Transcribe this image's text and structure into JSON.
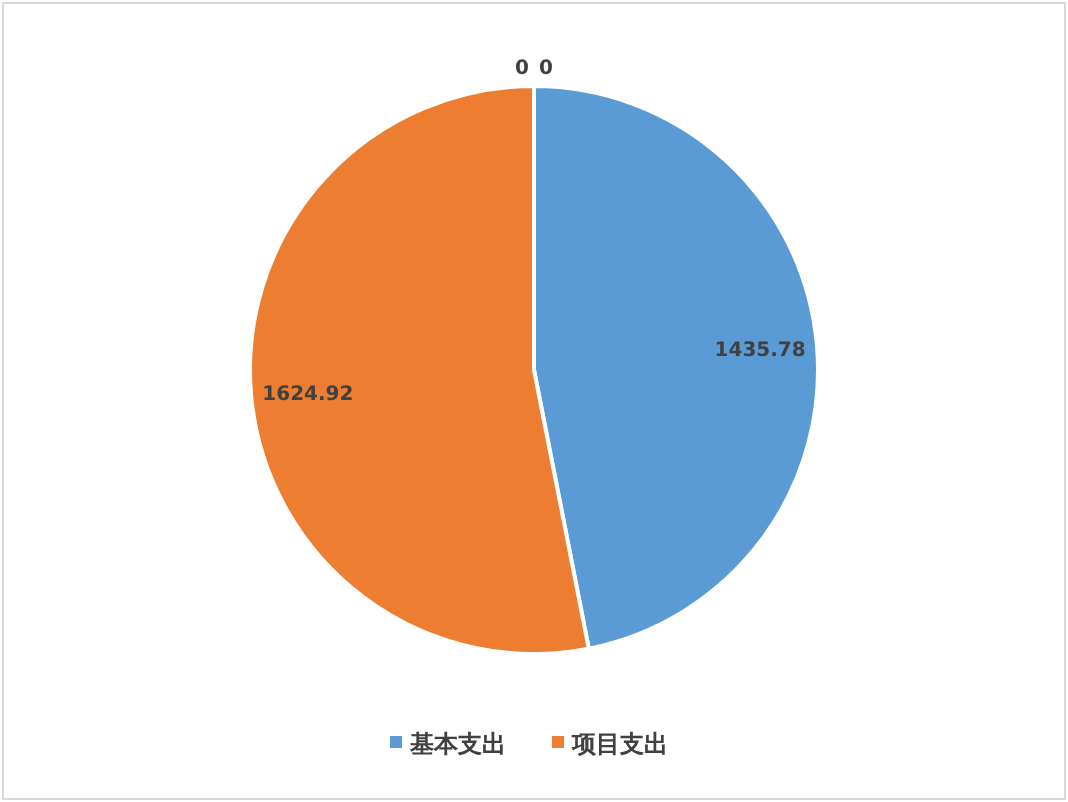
{
  "chart_data": {
    "type": "pie",
    "categories": [
      "基本支出",
      "项目支出",
      null,
      null
    ],
    "values": [
      1435.78,
      1624.92,
      0,
      0
    ],
    "colors": [
      "#5b9bd5",
      "#ed7d31",
      "#a5a5a5",
      "#ffc000"
    ],
    "value_labels": [
      "1435.78",
      "1624.92",
      "0",
      "0"
    ],
    "legend": "bottom"
  }
}
